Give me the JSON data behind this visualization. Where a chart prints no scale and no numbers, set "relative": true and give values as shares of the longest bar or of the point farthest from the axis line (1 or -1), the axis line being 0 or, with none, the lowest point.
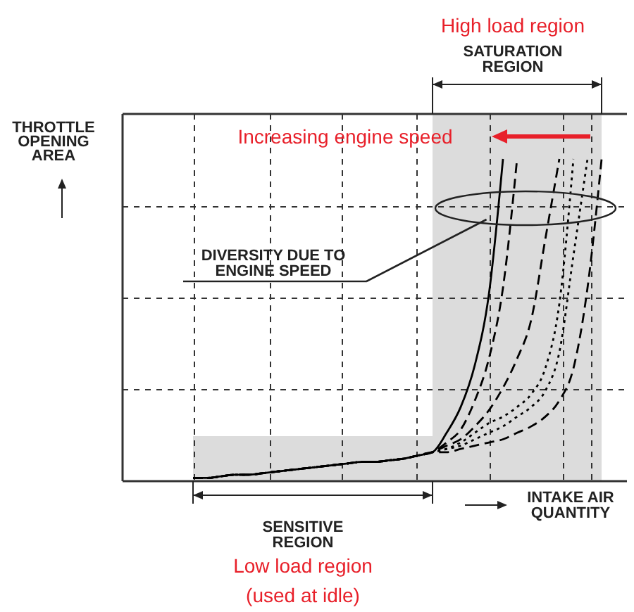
{
  "chart_data": {
    "type": "line",
    "relative": true,
    "xlabel": "INTAKE AIR QUANTITY",
    "ylabel": "THROTTLE OPENING AREA",
    "grid": true,
    "categories": [
      null,
      null,
      null,
      null,
      null,
      null,
      null,
      null,
      null,
      null,
      null,
      null,
      null,
      null,
      null,
      null,
      null,
      null,
      null,
      null,
      null,
      null,
      null,
      null,
      null,
      null,
      null,
      null,
      null,
      null,
      null,
      null,
      null,
      null,
      null,
      null
    ],
    "series": [
      {
        "color": "#000000",
        "line_style": "solid",
        "values": [
          null,
          null,
          null,
          null,
          null,
          0.01,
          0.01,
          0.015,
          0.02,
          0.02,
          0.025,
          0.03,
          0.035,
          0.04,
          0.045,
          0.05,
          0.055,
          0.06,
          0.06,
          0.065,
          0.07,
          0.08,
          0.09,
          0.15,
          0.23,
          0.36,
          0.58,
          1,
          null,
          null,
          null,
          null,
          null,
          null,
          null,
          null
        ]
      },
      {
        "color": "#000000",
        "line_style": "dashed",
        "values": [
          null,
          null,
          null,
          null,
          null,
          0.01,
          0.01,
          0.015,
          0.02,
          0.02,
          0.025,
          0.03,
          0.035,
          0.04,
          0.045,
          0.05,
          0.055,
          0.06,
          0.06,
          0.065,
          0.07,
          0.08,
          0.09,
          0.12,
          0.16,
          0.25,
          0.38,
          0.6,
          1,
          null,
          null,
          null,
          null,
          null,
          null,
          null
        ]
      },
      {
        "color": "#000000",
        "line_style": "dashed",
        "values": [
          null,
          null,
          null,
          null,
          null,
          0.01,
          0.01,
          0.015,
          0.02,
          0.02,
          0.025,
          0.03,
          0.035,
          0.04,
          0.045,
          0.05,
          0.055,
          0.06,
          0.06,
          0.065,
          0.07,
          0.08,
          0.09,
          0.11,
          0.13,
          0.17,
          0.22,
          0.29,
          0.38,
          0.5,
          0.75,
          1,
          null,
          null,
          null,
          null
        ]
      },
      {
        "color": "#000000",
        "line_style": "dotted",
        "values": [
          null,
          null,
          null,
          null,
          null,
          0.01,
          0.01,
          0.015,
          0.02,
          0.02,
          0.025,
          0.03,
          0.035,
          0.04,
          0.045,
          0.05,
          0.055,
          0.06,
          0.06,
          0.065,
          0.07,
          0.08,
          0.09,
          0.1,
          0.12,
          0.15,
          0.18,
          0.2,
          0.23,
          0.27,
          0.35,
          0.55,
          1,
          null,
          null,
          null
        ]
      },
      {
        "color": "#000000",
        "line_style": "dotted",
        "values": [
          null,
          null,
          null,
          null,
          null,
          0.01,
          0.01,
          0.015,
          0.02,
          0.02,
          0.025,
          0.03,
          0.035,
          0.04,
          0.045,
          0.05,
          0.055,
          0.06,
          0.06,
          0.065,
          0.07,
          0.08,
          0.09,
          0.1,
          0.11,
          0.13,
          0.15,
          0.17,
          0.2,
          0.23,
          0.28,
          0.4,
          0.7,
          1,
          null,
          null
        ]
      },
      {
        "color": "#000000",
        "line_style": "dashed",
        "values": [
          null,
          null,
          null,
          null,
          null,
          0.01,
          0.01,
          0.015,
          0.02,
          0.02,
          0.025,
          0.03,
          0.035,
          0.04,
          0.045,
          0.05,
          0.055,
          0.06,
          0.06,
          0.065,
          0.07,
          0.08,
          0.09,
          0.09,
          0.1,
          0.11,
          0.12,
          0.13,
          0.15,
          0.17,
          0.2,
          0.25,
          0.35,
          0.6,
          1,
          null
        ]
      }
    ],
    "annotations": [
      "High load region",
      "SATURATION REGION",
      "Increasing engine speed",
      "DIVERSITY DUE TO ENGINE SPEED",
      "SENSITIVE REGION",
      "Low load region",
      "(used at idle)"
    ]
  }
}
